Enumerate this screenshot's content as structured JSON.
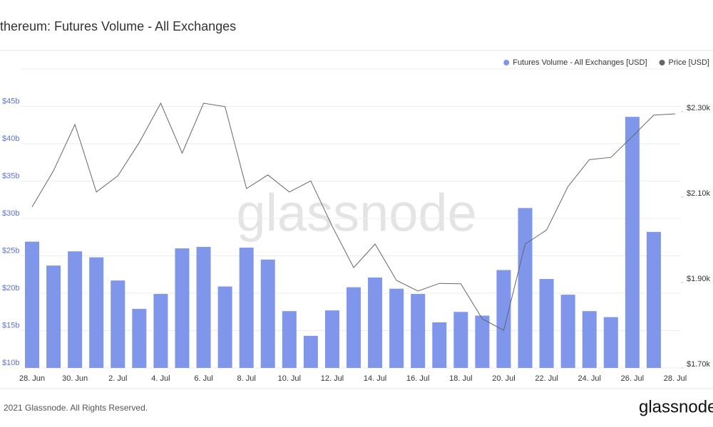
{
  "chart_data": {
    "type": "bar",
    "title": "thereum: Futures Volume - All Exchanges",
    "watermark": "glassnode",
    "footer": "2021 Glassnode. All Rights Reserved.",
    "logo": "glassnode",
    "categories": [
      "28. Jun",
      null,
      "30. Jun",
      null,
      "2. Jul",
      null,
      "4. Jul",
      null,
      "6. Jul",
      null,
      "8. Jul",
      null,
      "10. Jul",
      null,
      "12. Jul",
      null,
      "14. Jul",
      null,
      "16. Jul",
      null,
      "18. Jul",
      null,
      "20. Jul",
      null,
      "22. Jul",
      null,
      "24. Jul",
      null,
      "26. Jul",
      null,
      "28. Jul"
    ],
    "series": [
      {
        "name": "Futures Volume - All Exchanges [USD]",
        "type": "bar",
        "axis": "y",
        "color": "#7f96eb",
        "values": [
          26.9,
          23.7,
          25.6,
          24.8,
          21.7,
          17.9,
          19.9,
          26.0,
          26.2,
          20.9,
          26.1,
          24.5,
          17.6,
          14.3,
          17.7,
          20.8,
          22.1,
          20.6,
          19.9,
          16.1,
          17.5,
          17.0,
          23.1,
          31.4,
          21.9,
          19.8,
          17.6,
          16.8,
          43.6,
          28.2,
          null
        ]
      },
      {
        "name": "Price [USD]",
        "type": "line",
        "axis": "y2",
        "color": "#666666",
        "values": [
          2077,
          2162,
          2270,
          2112,
          2150,
          2228,
          2320,
          2203,
          2320,
          2312,
          2120,
          2152,
          2112,
          2138,
          2032,
          1935,
          1990,
          1905,
          1880,
          1898,
          1897,
          1815,
          1788,
          1990,
          2023,
          2125,
          2188,
          2193,
          2242,
          2292,
          2295
        ]
      }
    ],
    "ylim": [
      10,
      50
    ],
    "yticks": [
      {
        "value": 10,
        "label": "$10b"
      },
      {
        "value": 15,
        "label": "$15b"
      },
      {
        "value": 20,
        "label": "$20b"
      },
      {
        "value": 25,
        "label": "$25b"
      },
      {
        "value": 30,
        "label": "$30b"
      },
      {
        "value": 35,
        "label": "$35b"
      },
      {
        "value": 40,
        "label": "$40b"
      },
      {
        "value": 45,
        "label": "$45b"
      }
    ],
    "y2lim": [
      1700,
      2400
    ],
    "y2ticks": [
      {
        "value": 1700,
        "label": "$1.70k"
      },
      {
        "value": 1900,
        "label": "$1.90k"
      },
      {
        "value": 2100,
        "label": "$2.10k"
      },
      {
        "value": 2300,
        "label": "$2.30k"
      }
    ],
    "grid": true,
    "legend": "top-right"
  }
}
